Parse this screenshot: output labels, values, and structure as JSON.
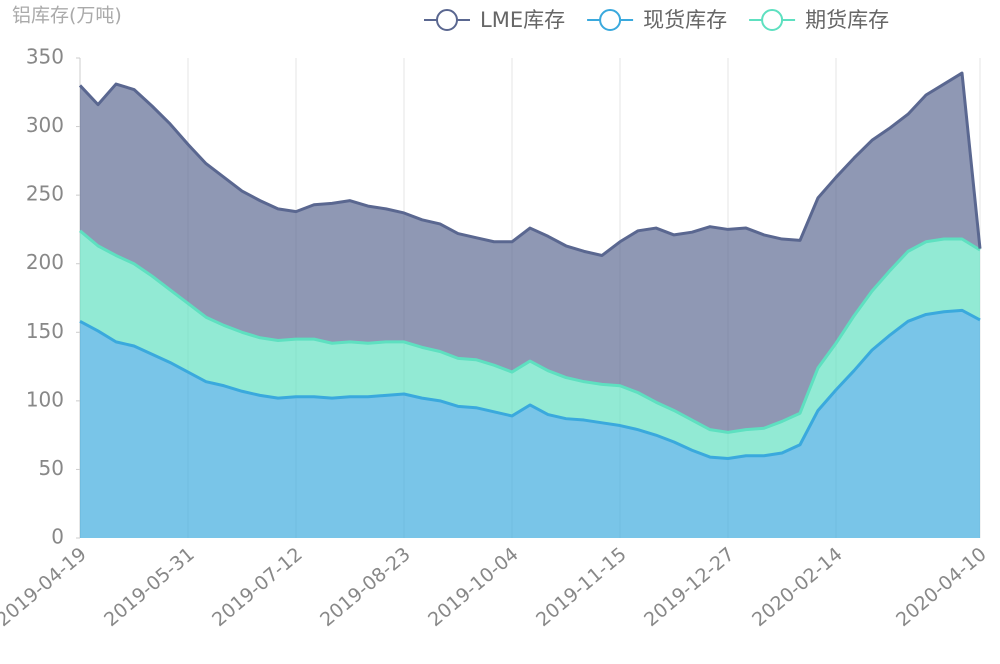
{
  "chart_data": {
    "type": "stacked-area",
    "y_label": "铝库存(万吨)",
    "categories": [
      "2019-04-19",
      null,
      null,
      null,
      null,
      null,
      "2019-05-31",
      null,
      null,
      null,
      null,
      null,
      "2019-07-12",
      null,
      null,
      null,
      null,
      null,
      "2019-08-23",
      null,
      null,
      null,
      null,
      null,
      "2019-10-04",
      null,
      null,
      null,
      null,
      null,
      "2019-11-15",
      null,
      null,
      null,
      null,
      null,
      "2019-12-27",
      null,
      null,
      null,
      null,
      null,
      "2020-02-14",
      null,
      null,
      null,
      null,
      null,
      null,
      null,
      "2020-04-10"
    ],
    "series": [
      {
        "name": "现货库存",
        "color": "#3aa9dd",
        "values": [
          158,
          151,
          143,
          140,
          134,
          128,
          121,
          114,
          111,
          107,
          104,
          102,
          103,
          103,
          102,
          103,
          103,
          104,
          105,
          102,
          100,
          96,
          95,
          92,
          89,
          97,
          90,
          87,
          86,
          84,
          82,
          79,
          75,
          70,
          64,
          59,
          58,
          60,
          60,
          62,
          68,
          93,
          108,
          122,
          137,
          148,
          158,
          163,
          165,
          166,
          159
        ]
      },
      {
        "name": "期货库存",
        "color": "#5ee0c0",
        "values": [
          66,
          62,
          63,
          60,
          57,
          53,
          50,
          47,
          44,
          43,
          42,
          42,
          42,
          42,
          40,
          40,
          39,
          39,
          38,
          37,
          36,
          35,
          35,
          34,
          32,
          32,
          32,
          30,
          28,
          28,
          29,
          27,
          24,
          23,
          22,
          20,
          19,
          19,
          20,
          23,
          23,
          31,
          34,
          40,
          43,
          47,
          51,
          53,
          53,
          52,
          51
        ]
      },
      {
        "name": "LME库存",
        "color": "#5a6790",
        "values": [
          106,
          103,
          125,
          127,
          124,
          121,
          116,
          112,
          108,
          103,
          100,
          96,
          93,
          98,
          102,
          103,
          100,
          97,
          94,
          93,
          93,
          91,
          89,
          90,
          95,
          97,
          98,
          96,
          95,
          94,
          105,
          118,
          127,
          128,
          137,
          148,
          148,
          147,
          141,
          133,
          126,
          124,
          121,
          115,
          110,
          104,
          100,
          107,
          113,
          121,
          1
        ]
      }
    ],
    "legend_order": [
      2,
      0,
      1
    ],
    "ylim": [
      0,
      350
    ],
    "yticks": [
      0,
      50,
      100,
      150,
      200,
      250,
      300,
      350
    ],
    "grid": true
  }
}
